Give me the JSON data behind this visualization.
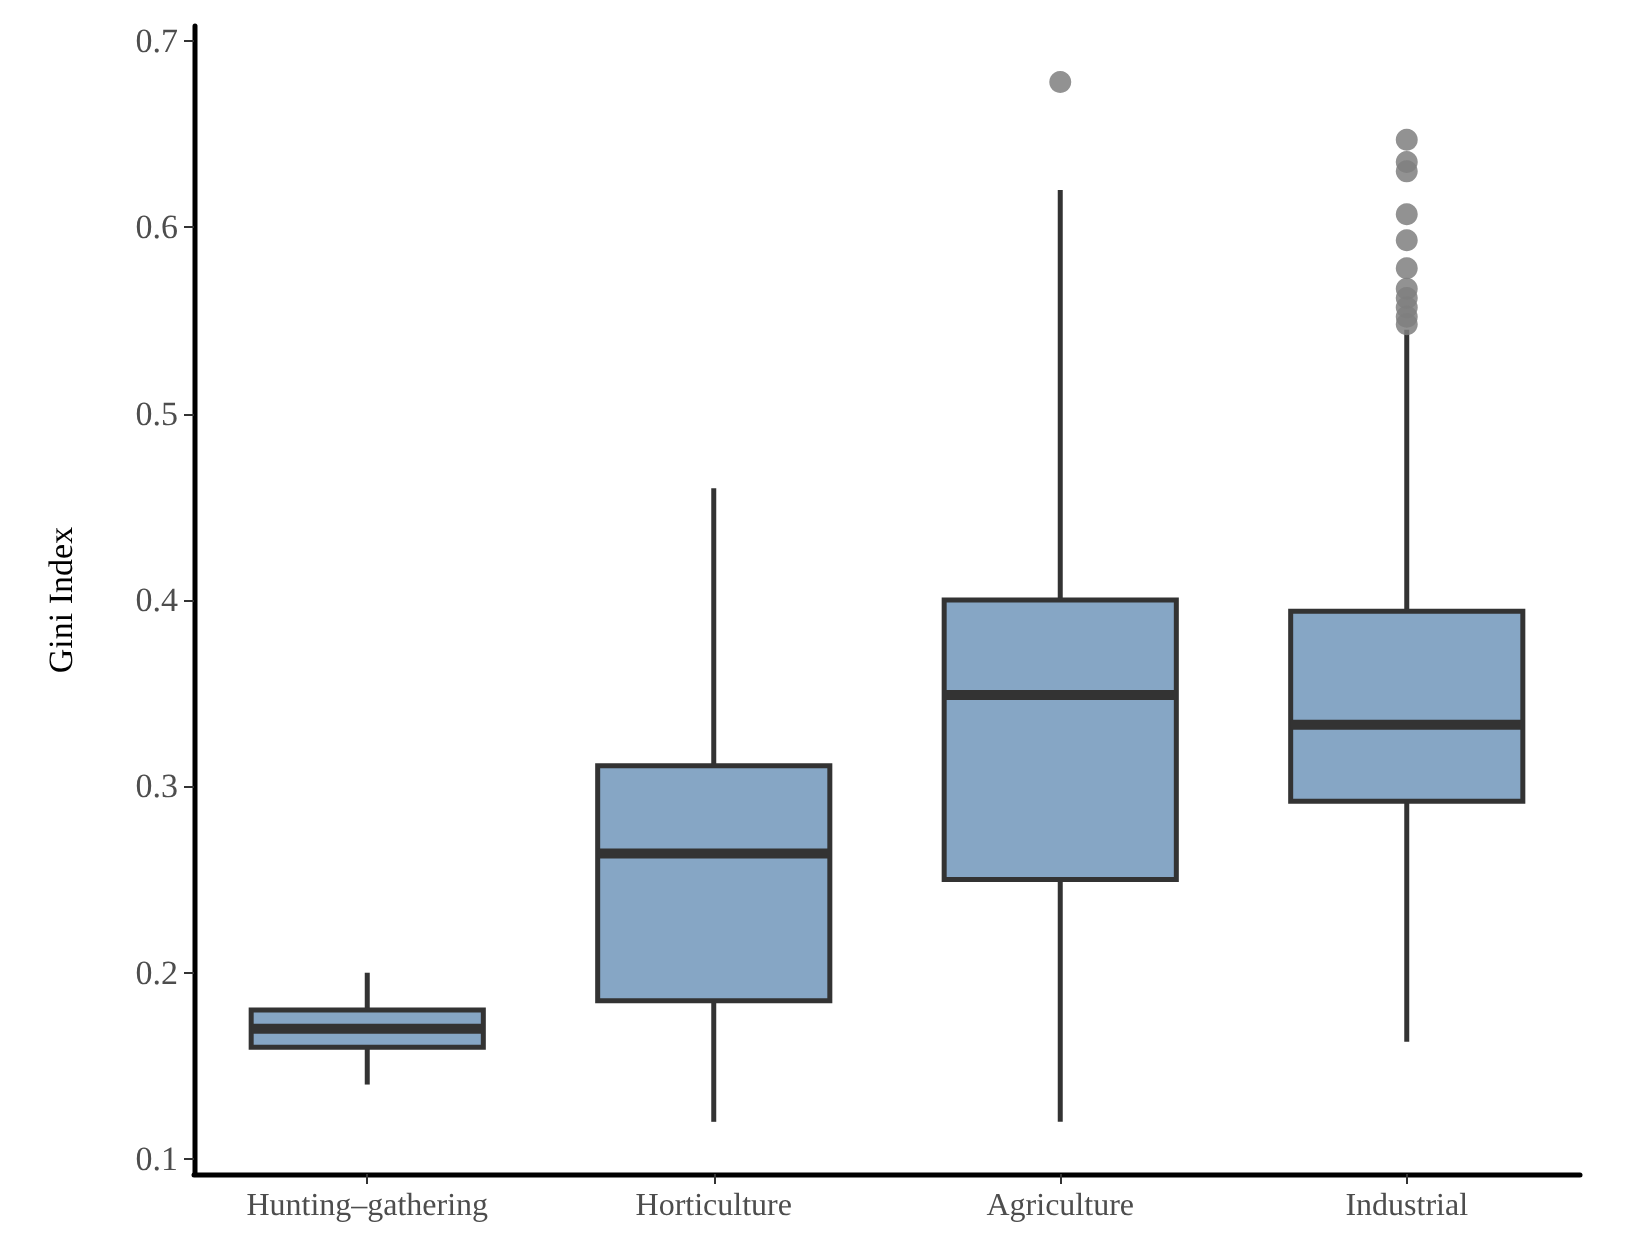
{
  "chart_data": {
    "type": "box",
    "ylabel": "Gini Index",
    "categories": [
      "Hunting–gathering",
      "Horticulture",
      "Agriculture",
      "Industrial"
    ],
    "boxes": [
      {
        "low": 0.14,
        "q1": 0.16,
        "median": 0.17,
        "q3": 0.18,
        "high": 0.2
      },
      {
        "low": 0.12,
        "q1": 0.185,
        "median": 0.264,
        "q3": 0.311,
        "high": 0.46
      },
      {
        "low": 0.12,
        "q1": 0.25,
        "median": 0.349,
        "q3": 0.4,
        "high": 0.62,
        "outliers": [
          0.678
        ]
      },
      {
        "low": 0.163,
        "q1": 0.292,
        "median": 0.333,
        "q3": 0.394,
        "high": 0.545,
        "outliers": [
          0.647,
          0.635,
          0.63,
          0.607,
          0.593,
          0.578,
          0.567,
          0.562,
          0.557,
          0.552,
          0.548
        ]
      }
    ],
    "color": "#86a6c5",
    "ylim": [
      0.092,
      0.708
    ],
    "yticks": [
      0.1,
      0.2,
      0.3,
      0.4,
      0.5,
      0.6,
      0.7
    ],
    "grid": false
  }
}
